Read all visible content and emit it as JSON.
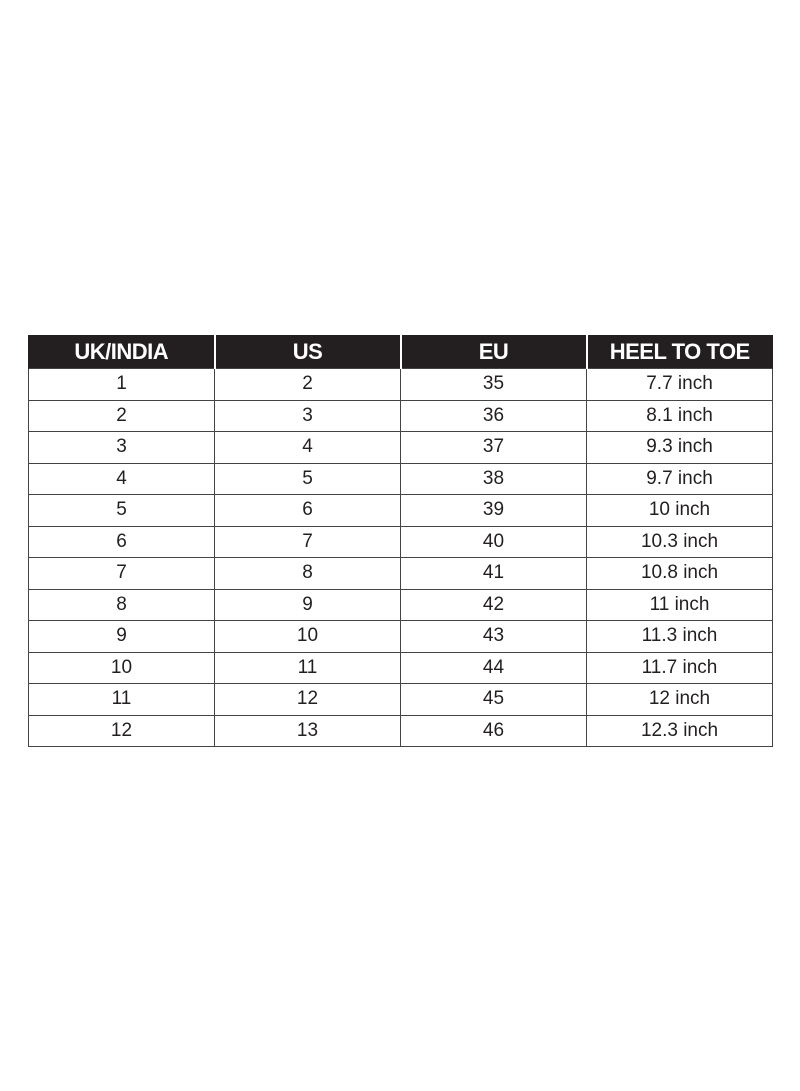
{
  "table": {
    "headers": [
      "UK/INDIA",
      "US",
      "EU",
      "HEEL TO TOE"
    ],
    "rows": [
      [
        "1",
        "2",
        "35",
        "7.7 inch"
      ],
      [
        "2",
        "3",
        "36",
        "8.1 inch"
      ],
      [
        "3",
        "4",
        "37",
        "9.3 inch"
      ],
      [
        "4",
        "5",
        "38",
        "9.7 inch"
      ],
      [
        "5",
        "6",
        "39",
        "10 inch"
      ],
      [
        "6",
        "7",
        "40",
        "10.3 inch"
      ],
      [
        "7",
        "8",
        "41",
        "10.8 inch"
      ],
      [
        "8",
        "9",
        "42",
        "11 inch"
      ],
      [
        "9",
        "10",
        "43",
        "11.3 inch"
      ],
      [
        "10",
        "11",
        "44",
        "11.7 inch"
      ],
      [
        "11",
        "12",
        "45",
        "12 inch"
      ],
      [
        "12",
        "13",
        "46",
        "12.3 inch"
      ]
    ]
  },
  "colors": {
    "header_bg": "#231f20",
    "header_text": "#ffffff",
    "border": "#444444"
  }
}
